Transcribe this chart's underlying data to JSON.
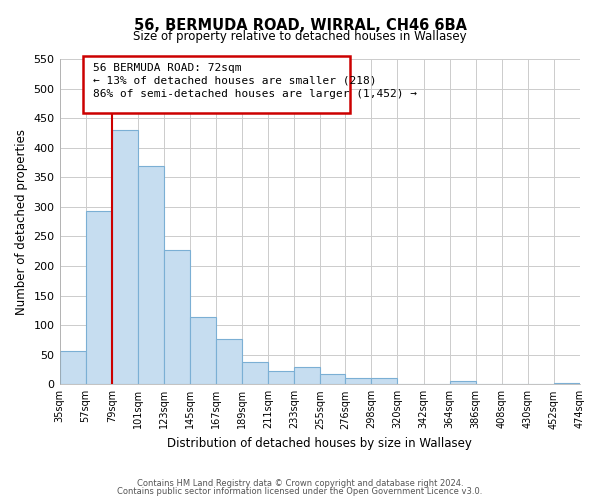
{
  "title": "56, BERMUDA ROAD, WIRRAL, CH46 6BA",
  "subtitle": "Size of property relative to detached houses in Wallasey",
  "xlabel": "Distribution of detached houses by size in Wallasey",
  "ylabel": "Number of detached properties",
  "footer_lines": [
    "Contains HM Land Registry data © Crown copyright and database right 2024.",
    "Contains public sector information licensed under the Open Government Licence v3.0."
  ],
  "annotation_title": "56 BERMUDA ROAD: 72sqm",
  "annotation_line1": "← 13% of detached houses are smaller (218)",
  "annotation_line2": "86% of semi-detached houses are larger (1,452) →",
  "bar_edges": [
    35,
    57,
    79,
    101,
    123,
    145,
    167,
    189,
    211,
    233,
    255,
    276,
    298,
    320,
    342,
    364,
    386,
    408,
    430,
    452,
    474
  ],
  "bar_heights": [
    57,
    293,
    430,
    369,
    227,
    113,
    76,
    38,
    22,
    29,
    18,
    10,
    11,
    0,
    0,
    5,
    0,
    0,
    0,
    3
  ],
  "bar_color": "#c6ddf0",
  "bar_edgecolor": "#7bafd4",
  "vline_color": "#cc0000",
  "vline_x": 79,
  "ylim": [
    0,
    550
  ],
  "yticks": [
    0,
    50,
    100,
    150,
    200,
    250,
    300,
    350,
    400,
    450,
    500,
    550
  ],
  "background_color": "#ffffff",
  "grid_color": "#cccccc"
}
